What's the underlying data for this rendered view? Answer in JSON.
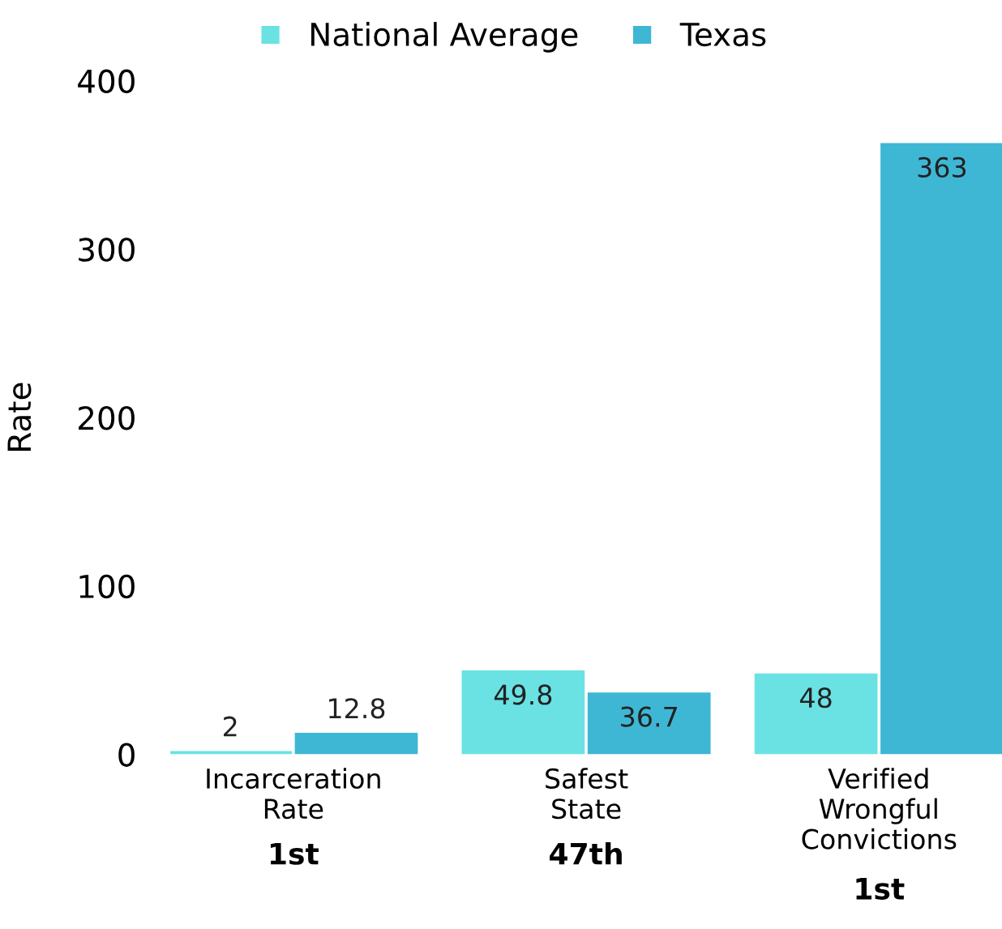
{
  "chart_data": {
    "type": "bar",
    "categories": [
      "Incarceration\nRate",
      "Safest\nState",
      "Verified\nWrongful\nConvictions"
    ],
    "series": [
      {
        "name": "National Average",
        "color": "#6ae2e4",
        "values": [
          2,
          49.8,
          48
        ]
      },
      {
        "name": "Texas",
        "color": "#3eb7d5",
        "values": [
          12.8,
          36.7,
          363
        ]
      }
    ],
    "ylabel": "Rate",
    "ylim": [
      0,
      400
    ],
    "yticks": [
      0,
      100,
      200,
      300,
      400
    ],
    "annotations": [
      "1st",
      "47th",
      "1st"
    ],
    "data_labels": true,
    "grid": false,
    "legend": "top"
  }
}
